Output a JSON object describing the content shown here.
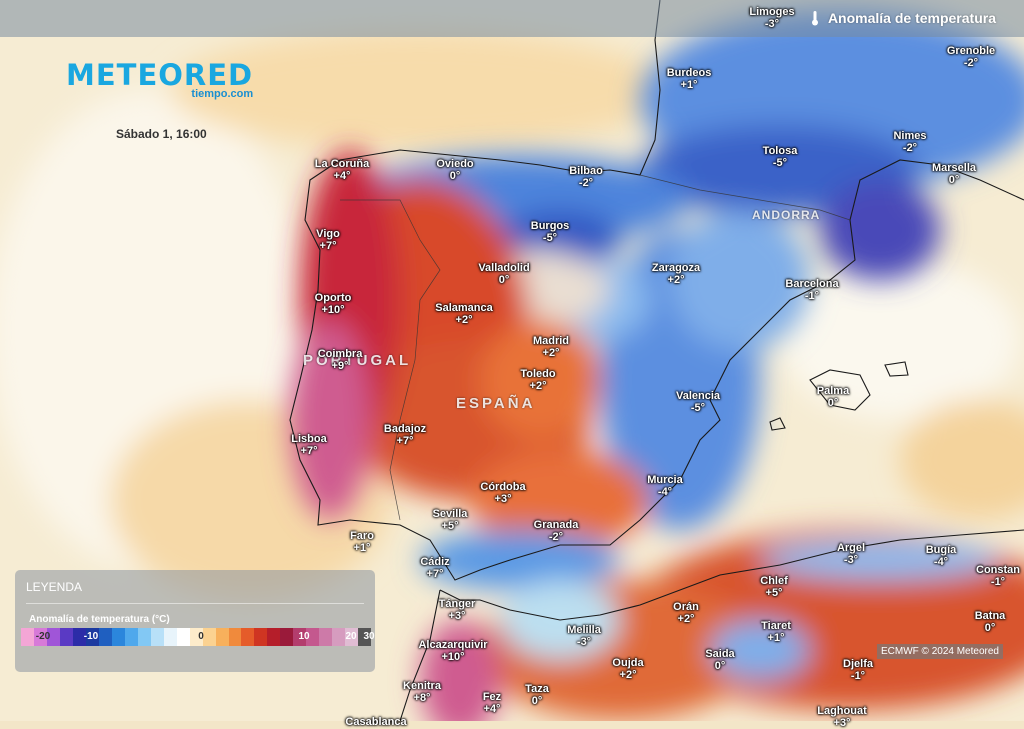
{
  "header": {
    "title": "Anomalía de temperatura",
    "thermometer_icon": "thermometer-icon"
  },
  "brand": {
    "name": "METEORED",
    "subdomain": "tiempo.com",
    "color": "#1aa7e0"
  },
  "datetime": "Sábado 1, 16:00",
  "cities": [
    {
      "name": "Limoges",
      "value": "-3°"
    },
    {
      "name": "Grenoble",
      "value": "-2°"
    },
    {
      "name": "Burdeos",
      "value": "+1°"
    },
    {
      "name": "Nimes",
      "value": "-2°"
    },
    {
      "name": "Tolosa",
      "value": "-5°"
    },
    {
      "name": "Marsella",
      "value": "0°"
    },
    {
      "name": "La Coruña",
      "value": "+4°"
    },
    {
      "name": "Oviedo",
      "value": "0°"
    },
    {
      "name": "Bilbao",
      "value": "-2°"
    },
    {
      "name": "Vigo",
      "value": "+7°"
    },
    {
      "name": "Burgos",
      "value": "-5°"
    },
    {
      "name": "Valladolid",
      "value": "0°"
    },
    {
      "name": "Zaragoza",
      "value": "+2°"
    },
    {
      "name": "Barcelona",
      "value": "-1°"
    },
    {
      "name": "Oporto",
      "value": "+10°"
    },
    {
      "name": "Salamanca",
      "value": "+2°"
    },
    {
      "name": "Madrid",
      "value": "+2°"
    },
    {
      "name": "Coimbra",
      "value": "+9°"
    },
    {
      "name": "Toledo",
      "value": "+2°"
    },
    {
      "name": "Palma",
      "value": "0°"
    },
    {
      "name": "Valencia",
      "value": "-5°"
    },
    {
      "name": "Lisboa",
      "value": "+7°"
    },
    {
      "name": "Badajoz",
      "value": "+7°"
    },
    {
      "name": "Córdoba",
      "value": "+3°"
    },
    {
      "name": "Murcia",
      "value": "-4°"
    },
    {
      "name": "Sevilla",
      "value": "+5°"
    },
    {
      "name": "Faro",
      "value": "+1°"
    },
    {
      "name": "Granada",
      "value": "-2°"
    },
    {
      "name": "Cádiz",
      "value": "+7°"
    },
    {
      "name": "Argel",
      "value": "-3°"
    },
    {
      "name": "Bugía",
      "value": "-4°"
    },
    {
      "name": "Constan",
      "value": "-1°"
    },
    {
      "name": "Chlef",
      "value": "+5°"
    },
    {
      "name": "Tánger",
      "value": "+3°"
    },
    {
      "name": "Orán",
      "value": "+2°"
    },
    {
      "name": "Tiaret",
      "value": "+1°"
    },
    {
      "name": "Batna",
      "value": "0°"
    },
    {
      "name": "Melilla",
      "value": "-3°"
    },
    {
      "name": "Alcazarquivir",
      "value": "+10°"
    },
    {
      "name": "Saida",
      "value": "0°"
    },
    {
      "name": "Oujda",
      "value": "+2°"
    },
    {
      "name": "Djelfa",
      "value": "-1°"
    },
    {
      "name": "Kenitra",
      "value": "+8°"
    },
    {
      "name": "Fez",
      "value": "+4°"
    },
    {
      "name": "Taza",
      "value": "0°"
    },
    {
      "name": "Laghouat",
      "value": "+3°"
    },
    {
      "name": "Casablanca",
      "value": ""
    }
  ],
  "countries": {
    "portugal": "PORTUGAL",
    "spain": "ESPAÑA",
    "andorra": "ANDORRA"
  },
  "legend": {
    "heading": "LEYENDA",
    "title": "Anomalía de temperatura (°C)",
    "ticks": [
      "-20",
      "-10",
      "0",
      "10",
      "20",
      "30"
    ],
    "colors": [
      "#f4a6d6",
      "#d77ad8",
      "#a055d8",
      "#5a3ac4",
      "#2c2ca8",
      "#1c3aa0",
      "#1f5fc0",
      "#2b86dc",
      "#4fa8ec",
      "#82c8f4",
      "#b8e0f8",
      "#e8f4fb",
      "#ffffff",
      "#fdeccb",
      "#fbd291",
      "#f7b05c",
      "#f08a3c",
      "#e55c2a",
      "#cf3522",
      "#b51e2a",
      "#9a1a3a",
      "#b33d6d",
      "#c4588e",
      "#cd7aa8",
      "#d69cbf",
      "#e0bcd3",
      "#555555"
    ]
  },
  "credit": "ECMWF © 2024 Meteored"
}
